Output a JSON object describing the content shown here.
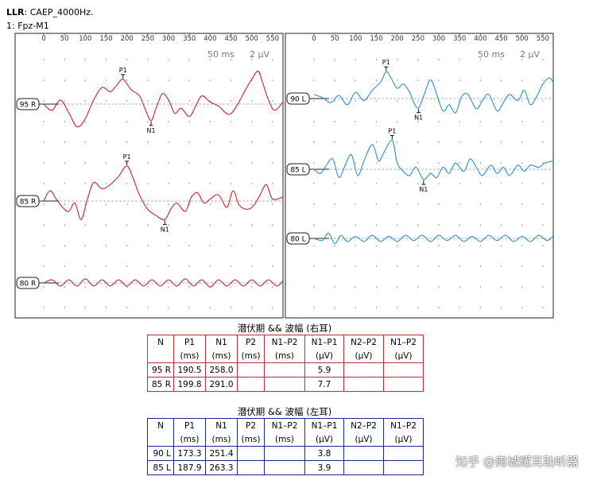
{
  "header": {
    "test_name": "LLR",
    "stimulus": ": CAEP_4000Hz.",
    "channel": "1: Fpz-M1"
  },
  "panels": [
    {
      "side": "right",
      "color": "#c8262e",
      "time_scale": "50 ms",
      "amp_scale": "2 µV",
      "x_ticks": [
        "0",
        "50",
        "100",
        "150",
        "200",
        "250",
        "300",
        "350",
        "400",
        "450",
        "500",
        "550"
      ],
      "traces": [
        {
          "label": "95 R",
          "peaks": [
            {
              "name": "P1",
              "latency_ms": 190.5
            },
            {
              "name": "N1",
              "latency_ms": 258.0
            }
          ]
        },
        {
          "label": "85 R",
          "peaks": [
            {
              "name": "P1",
              "latency_ms": 199.8
            },
            {
              "name": "N1",
              "latency_ms": 291.0
            }
          ]
        },
        {
          "label": "80 R",
          "peaks": []
        }
      ]
    },
    {
      "side": "left",
      "color": "#2d8fd0",
      "time_scale": "50 ms",
      "amp_scale": "2 µV",
      "x_ticks": [
        "0",
        "50",
        "100",
        "150",
        "200",
        "250",
        "300",
        "350",
        "400",
        "450",
        "500",
        "550"
      ],
      "traces": [
        {
          "label": "90 L",
          "peaks": [
            {
              "name": "P1",
              "latency_ms": 173.3
            },
            {
              "name": "N1",
              "latency_ms": 251.4
            }
          ]
        },
        {
          "label": "85 L",
          "peaks": [
            {
              "name": "P1",
              "latency_ms": 187.9
            },
            {
              "name": "N1",
              "latency_ms": 263.3
            }
          ]
        },
        {
          "label": "80 L",
          "peaks": []
        }
      ]
    }
  ],
  "tables": [
    {
      "title": "潜伏期 && 波幅 (右耳)",
      "headers": [
        "N",
        "P1",
        "N1",
        "P2",
        "N1–P2",
        "N1–P1",
        "N2–P2",
        "N1–P2"
      ],
      "units": [
        "",
        "(ms)",
        "(ms)",
        "(ms)",
        "(ms)",
        "(µV)",
        "(µV)",
        "(µV)"
      ],
      "rows": [
        [
          "95 R",
          "190.5",
          "258.0",
          "",
          "",
          "5.9",
          "",
          ""
        ],
        [
          "85 R",
          "199.8",
          "291.0",
          "",
          "",
          "7.7",
          "",
          ""
        ]
      ]
    },
    {
      "title": "潜伏期 && 波幅 (左耳)",
      "headers": [
        "N",
        "P1",
        "N1",
        "P2",
        "N1–P2",
        "N1–P1",
        "N2–P2",
        "N1–P2"
      ],
      "units": [
        "",
        "(ms)",
        "(ms)",
        "(ms)",
        "(ms)",
        "(µV)",
        "(µV)",
        "(µV)"
      ],
      "rows": [
        [
          "90 L",
          "173.3",
          "251.4",
          "",
          "",
          "3.8",
          "",
          ""
        ],
        [
          "85 L",
          "187.9",
          "263.3",
          "",
          "",
          "3.9",
          "",
          ""
        ]
      ]
    }
  ],
  "watermark": "知乎 @南城耀耳助听器",
  "chart_data": {
    "type": "line",
    "x_unit": "ms",
    "xlim": [
      0,
      575
    ],
    "series": [
      {
        "name": "95 R",
        "points": [
          [
            0,
            0
          ],
          [
            20,
            -0.6
          ],
          [
            40,
            0.4
          ],
          [
            60,
            -0.8
          ],
          [
            80,
            -2.2
          ],
          [
            100,
            -1.4
          ],
          [
            120,
            0.4
          ],
          [
            140,
            1.6
          ],
          [
            160,
            1.2
          ],
          [
            175,
            1.8
          ],
          [
            190.5,
            2.4
          ],
          [
            210,
            1.4
          ],
          [
            230,
            0.8
          ],
          [
            245,
            -0.6
          ],
          [
            258,
            -1.6
          ],
          [
            270,
            -0.4
          ],
          [
            285,
            1.0
          ],
          [
            300,
            0.4
          ],
          [
            315,
            -0.9
          ],
          [
            330,
            -0.4
          ],
          [
            350,
            -1.2
          ],
          [
            365,
            -0.2
          ],
          [
            380,
            0.8
          ],
          [
            400,
            0.2
          ],
          [
            420,
            -0.2
          ],
          [
            445,
            -1.0
          ],
          [
            465,
            -0.1
          ],
          [
            485,
            1.4
          ],
          [
            500,
            2.4
          ],
          [
            515,
            3.2
          ],
          [
            525,
            2.2
          ],
          [
            540,
            0.4
          ],
          [
            555,
            -0.6
          ],
          [
            575,
            0.2
          ]
        ]
      },
      {
        "name": "85 R",
        "points": [
          [
            0,
            0
          ],
          [
            15,
            1.0
          ],
          [
            30,
            0.2
          ],
          [
            45,
            -0.6
          ],
          [
            60,
            -1.0
          ],
          [
            75,
            -0.2
          ],
          [
            90,
            -1.8
          ],
          [
            105,
            0.2
          ],
          [
            120,
            1.8
          ],
          [
            140,
            1.2
          ],
          [
            160,
            1.6
          ],
          [
            180,
            2.4
          ],
          [
            199.8,
            3.4
          ],
          [
            215,
            2.2
          ],
          [
            230,
            0.6
          ],
          [
            250,
            -0.8
          ],
          [
            270,
            -1.4
          ],
          [
            291,
            -1.8
          ],
          [
            305,
            -0.8
          ],
          [
            320,
            -0.2
          ],
          [
            340,
            -1.0
          ],
          [
            355,
            0.4
          ],
          [
            370,
            0.8
          ],
          [
            385,
            -0.2
          ],
          [
            400,
            0.2
          ],
          [
            420,
            0.6
          ],
          [
            440,
            -0.6
          ],
          [
            455,
            1.0
          ],
          [
            470,
            -0.4
          ],
          [
            490,
            -0.8
          ],
          [
            505,
            -0.4
          ],
          [
            520,
            0.6
          ],
          [
            535,
            1.6
          ],
          [
            550,
            0.2
          ],
          [
            575,
            0.4
          ]
        ]
      },
      {
        "name": "80 R",
        "points": [
          [
            0,
            0
          ],
          [
            20,
            0.3
          ],
          [
            40,
            -0.3
          ],
          [
            60,
            0.3
          ],
          [
            80,
            -0.3
          ],
          [
            100,
            0.4
          ],
          [
            120,
            -0.3
          ],
          [
            140,
            0.3
          ],
          [
            160,
            -0.3
          ],
          [
            180,
            0.3
          ],
          [
            200,
            -0.3
          ],
          [
            220,
            0.3
          ],
          [
            240,
            -0.3
          ],
          [
            260,
            0.3
          ],
          [
            280,
            -0.3
          ],
          [
            300,
            0.3
          ],
          [
            320,
            -0.3
          ],
          [
            340,
            0.4
          ],
          [
            360,
            -0.3
          ],
          [
            380,
            0.3
          ],
          [
            400,
            -0.4
          ],
          [
            420,
            0.3
          ],
          [
            440,
            -0.3
          ],
          [
            460,
            0.3
          ],
          [
            480,
            -0.3
          ],
          [
            500,
            0.3
          ],
          [
            520,
            -0.3
          ],
          [
            540,
            0.3
          ],
          [
            560,
            -0.3
          ],
          [
            575,
            0.2
          ]
        ]
      },
      {
        "name": "90 L",
        "points": [
          [
            0,
            0.4
          ],
          [
            20,
            0.1
          ],
          [
            40,
            -0.4
          ],
          [
            60,
            0.3
          ],
          [
            80,
            -0.6
          ],
          [
            100,
            0.6
          ],
          [
            120,
            -0.2
          ],
          [
            140,
            0.8
          ],
          [
            160,
            1.6
          ],
          [
            173.3,
            2.6
          ],
          [
            185,
            2.0
          ],
          [
            200,
            1.0
          ],
          [
            215,
            1.4
          ],
          [
            230,
            0.6
          ],
          [
            240,
            -0.4
          ],
          [
            251.4,
            -0.9
          ],
          [
            265,
            0.4
          ],
          [
            280,
            1.8
          ],
          [
            295,
            0.4
          ],
          [
            310,
            -1.2
          ],
          [
            325,
            -0.6
          ],
          [
            340,
            -1.4
          ],
          [
            355,
            0.2
          ],
          [
            370,
            0.4
          ],
          [
            390,
            -1.0
          ],
          [
            405,
            -0.2
          ],
          [
            420,
            0.4
          ],
          [
            440,
            -1.2
          ],
          [
            455,
            -0.4
          ],
          [
            470,
            0.4
          ],
          [
            490,
            -0.2
          ],
          [
            505,
            0.8
          ],
          [
            520,
            -0.6
          ],
          [
            535,
            0.2
          ],
          [
            550,
            1.4
          ],
          [
            565,
            2.0
          ],
          [
            575,
            1.6
          ]
        ]
      },
      {
        "name": "85 L",
        "points": [
          [
            0,
            0
          ],
          [
            15,
            -0.4
          ],
          [
            30,
            0.4
          ],
          [
            45,
            1.0
          ],
          [
            60,
            -0.8
          ],
          [
            75,
            0.4
          ],
          [
            90,
            1.4
          ],
          [
            105,
            -0.6
          ],
          [
            120,
            0.8
          ],
          [
            140,
            2.4
          ],
          [
            155,
            0.8
          ],
          [
            165,
            1.4
          ],
          [
            187.9,
            2.8
          ],
          [
            200,
            0.6
          ],
          [
            215,
            -0.2
          ],
          [
            230,
            -0.6
          ],
          [
            245,
            0.2
          ],
          [
            263.3,
            -1.0
          ],
          [
            280,
            -0.4
          ],
          [
            295,
            -0.8
          ],
          [
            310,
            0.2
          ],
          [
            325,
            -0.4
          ],
          [
            340,
            0.6
          ],
          [
            360,
            -0.2
          ],
          [
            375,
            1.0
          ],
          [
            390,
            0.2
          ],
          [
            405,
            -0.6
          ],
          [
            425,
            0.4
          ],
          [
            440,
            -0.4
          ],
          [
            455,
            0.2
          ],
          [
            470,
            -0.6
          ],
          [
            490,
            0.4
          ],
          [
            505,
            -0.2
          ],
          [
            520,
            0.4
          ],
          [
            540,
            0.2
          ],
          [
            555,
            0.6
          ],
          [
            575,
            0.8
          ]
        ]
      },
      {
        "name": "80 L",
        "points": [
          [
            0,
            0
          ],
          [
            20,
            -0.2
          ],
          [
            35,
            0.5
          ],
          [
            50,
            -0.5
          ],
          [
            65,
            0.3
          ],
          [
            80,
            -0.3
          ],
          [
            100,
            0.2
          ],
          [
            120,
            -0.3
          ],
          [
            140,
            0.3
          ],
          [
            160,
            -0.3
          ],
          [
            180,
            0.2
          ],
          [
            200,
            -0.3
          ],
          [
            220,
            0.3
          ],
          [
            240,
            -0.2
          ],
          [
            260,
            0.3
          ],
          [
            280,
            -0.3
          ],
          [
            300,
            0.3
          ],
          [
            320,
            -0.2
          ],
          [
            340,
            0.3
          ],
          [
            360,
            -0.3
          ],
          [
            380,
            0.2
          ],
          [
            400,
            -0.3
          ],
          [
            420,
            0.3
          ],
          [
            440,
            -0.2
          ],
          [
            460,
            0.3
          ],
          [
            480,
            -0.3
          ],
          [
            500,
            0.2
          ],
          [
            520,
            -0.3
          ],
          [
            540,
            0.3
          ],
          [
            560,
            -0.2
          ],
          [
            575,
            0.2
          ]
        ]
      }
    ]
  }
}
